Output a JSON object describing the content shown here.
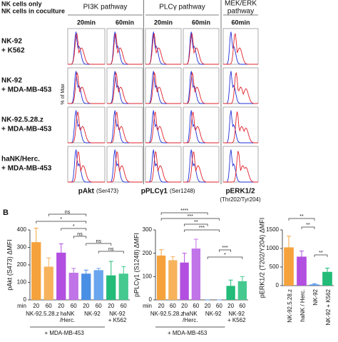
{
  "panel_a": {
    "legend": [
      {
        "text": "NK cells only",
        "color": "#1f2fd8"
      },
      {
        "text": "NK cells in coculture",
        "color": "#e0202a"
      }
    ],
    "pathways": [
      [
        "PI3K pathway"
      ],
      [
        "PLCγ pathway"
      ],
      [
        "MEK/ERK",
        "pathway"
      ]
    ],
    "times": [
      "20min",
      "60min",
      "20min",
      "60min",
      "60min"
    ],
    "rows": [
      [
        "NK-92",
        "+ K562"
      ],
      [
        "NK-92",
        "+ MDA-MB-453"
      ],
      [
        "NK-92.5.28.z",
        "+ MDA-MB-453"
      ],
      [
        "haNK/Herc.",
        "+ MDA-MB-453"
      ]
    ],
    "y_label": "% of Max",
    "markers": [
      {
        "name": "pAkt",
        "site": "(Ser473)"
      },
      {
        "name": "pPLCγ1",
        "site": "(Ser1248)"
      },
      {
        "name": "pERK1/2",
        "site": "(Thr202/Tyr204)"
      }
    ]
  },
  "panel_b_label": "B",
  "chart_data": [
    {
      "type": "bar",
      "y_label": "pAkt (S473) ΔMFI",
      "x_unit": "min",
      "categories": [
        "20",
        "60",
        "20",
        "60",
        "20",
        "60",
        "20",
        "60"
      ],
      "groups": [
        [
          "NK-92.5.28.z"
        ],
        [
          "haNK",
          "/Herc."
        ],
        [
          "NK-92"
        ],
        [
          "NK-92",
          "+ K562"
        ]
      ],
      "group_note": "+ MDA-MB-453",
      "values": [
        330,
        190,
        270,
        155,
        150,
        170,
        140,
        150
      ],
      "errors": [
        80,
        50,
        50,
        25,
        20,
        10,
        80,
        40
      ],
      "colors": [
        "#f5a23c",
        "#f7b35c",
        "#b24fe0",
        "#c173e8",
        "#4a8fe6",
        "#6aa5ee",
        "#22bb78",
        "#45c98f"
      ],
      "ylim": [
        0,
        400
      ],
      "yticks": [
        0,
        100,
        200,
        300,
        400
      ],
      "annotations": [
        "ns",
        "*",
        "*",
        "ns",
        "ns",
        "ns"
      ]
    },
    {
      "type": "bar",
      "y_label": "pPLCγ1 (S1248) ΔMFI",
      "x_unit": "min",
      "categories": [
        "20",
        "60",
        "20",
        "60",
        "20",
        "60",
        "20",
        "60"
      ],
      "groups": [
        [
          "NK-92.5.28.z"
        ],
        [
          "haNK",
          "/Herc."
        ],
        [
          "NK-92"
        ],
        [
          "NK-92",
          "+ K562"
        ]
      ],
      "group_note": "+ MDA-MB-453",
      "values": [
        190,
        170,
        160,
        220,
        0,
        0,
        60,
        80
      ],
      "errors": [
        25,
        15,
        40,
        40,
        0,
        0,
        25,
        20
      ],
      "colors": [
        "#f5a23c",
        "#f7b35c",
        "#b24fe0",
        "#c173e8",
        "#4a8fe6",
        "#6aa5ee",
        "#22bb78",
        "#45c98f"
      ],
      "ylim": [
        0,
        300
      ],
      "yticks": [
        0,
        100,
        200,
        300
      ],
      "annotations": [
        "****",
        "***",
        "**",
        "***",
        "*",
        "***"
      ]
    },
    {
      "type": "bar",
      "y_label": "pERK1/2 (T202/Y204) ΔMFI",
      "categories": [
        "NK-92.5.28.z",
        "haNK / Herc.",
        "NK-92",
        "NK-92 + K562"
      ],
      "values": [
        1030,
        780,
        30,
        370
      ],
      "errors": [
        300,
        150,
        20,
        100
      ],
      "colors": [
        "#f5a23c",
        "#b24fe0",
        "#4a8fe6",
        "#22bb78"
      ],
      "ylim": [
        0,
        1500
      ],
      "yticks": [
        0,
        500,
        1000,
        1500
      ],
      "annotations": [
        "**",
        "**",
        "**"
      ]
    }
  ]
}
